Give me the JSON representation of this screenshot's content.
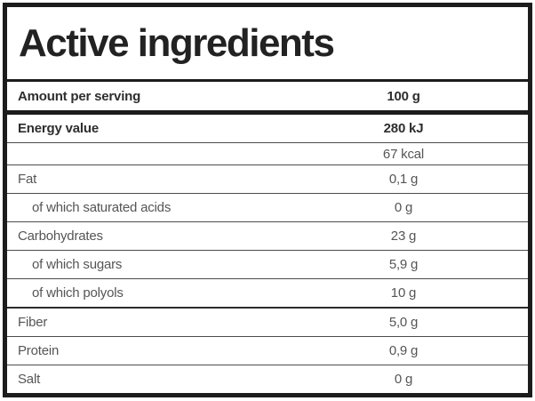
{
  "title": "Active ingredients",
  "table": {
    "header": {
      "label": "Amount per serving",
      "value": "100 g"
    },
    "rows": [
      {
        "label": "Energy value",
        "value": "280 kJ",
        "bold": true
      },
      {
        "label": "",
        "value": "67 kcal",
        "small": true
      },
      {
        "label": "Fat",
        "value": "0,1 g"
      },
      {
        "label": "of which saturated acids",
        "value": "0 g",
        "indent": true
      },
      {
        "label": "Carbohydrates",
        "value": "23 g"
      },
      {
        "label": "of which sugars",
        "value": "5,9 g",
        "indent": true
      },
      {
        "label": "of which polyols",
        "value": "10 g",
        "indent": true
      },
      {
        "label": "Fiber",
        "value": "5,0 g",
        "sep": true
      },
      {
        "label": "Protein",
        "value": "0,9 g"
      },
      {
        "label": "Salt",
        "value": "0 g"
      }
    ]
  },
  "colors": {
    "ink": "#1c1c1c",
    "ink-strong": "#2e2e2e",
    "text": "#555555",
    "line": "#4c4c4c",
    "bg": "#ffffff"
  }
}
